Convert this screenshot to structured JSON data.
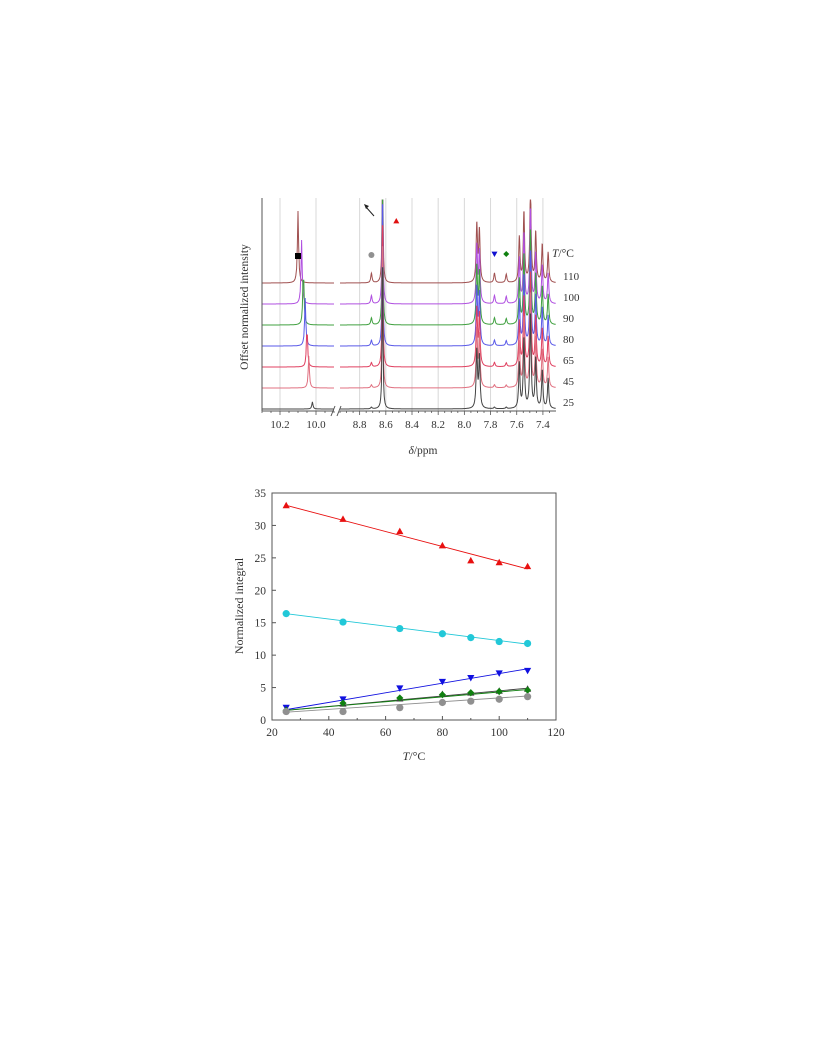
{
  "chart_data": [
    {
      "type": "line",
      "subtype": "nmr-spectra-stack",
      "xlabel_symbol": "δ",
      "xlabel_unit": "/ppm",
      "ylabel": "Offset normalized intensity",
      "x_axis_reversed": true,
      "x_axis_break": [
        8.95,
        10.05
      ],
      "xlim": [
        7.3,
        10.3
      ],
      "x_ticks": [
        "10.2",
        "10.0",
        "8.8",
        "8.6",
        "8.4",
        "8.2",
        "8.0",
        "7.8",
        "7.6",
        "7.4"
      ],
      "x_tick_values": [
        10.2,
        10.0,
        8.8,
        8.6,
        8.4,
        8.2,
        8.0,
        7.8,
        7.6,
        7.4
      ],
      "grid": true,
      "temperature_header_symbol": "T",
      "temperature_header_unit": "/°C",
      "series": [
        {
          "temperature": "110",
          "color": "#a05050",
          "peak_10": 10.1
        },
        {
          "temperature": "100",
          "color": "#b050e0",
          "peak_10": 10.08
        },
        {
          "temperature": "90",
          "color": "#40a040",
          "peak_10": 10.07
        },
        {
          "temperature": "80",
          "color": "#5a5ae8",
          "peak_10": 10.06
        },
        {
          "temperature": "65",
          "color": "#e04060",
          "peak_10": 10.05
        },
        {
          "temperature": "45",
          "color": "#e07080",
          "peak_10": 10.04
        },
        {
          "temperature": "25",
          "color": "#444444",
          "peak_10": 10.02
        }
      ],
      "markers": [
        {
          "shape": "square",
          "color": "#000000",
          "ppm": 10.1
        },
        {
          "shape": "circle",
          "color": "#909090",
          "ppm": 8.71
        },
        {
          "shape": "triangle-up",
          "color": "#e01010",
          "ppm": 8.52
        },
        {
          "shape": "triangle-down",
          "color": "#1010d0",
          "ppm": 7.77
        },
        {
          "shape": "diamond",
          "color": "#108010",
          "ppm": 7.68
        }
      ]
    },
    {
      "type": "scatter",
      "xlabel_symbol": "T",
      "xlabel_unit": "/°C",
      "ylabel": "Normalized integral",
      "xlim": [
        20,
        120
      ],
      "ylim": [
        0,
        35
      ],
      "x_ticks": [
        "20",
        "40",
        "60",
        "80",
        "100",
        "120"
      ],
      "x_tick_values": [
        20,
        40,
        60,
        80,
        100,
        120
      ],
      "y_ticks": [
        "0",
        "5",
        "10",
        "15",
        "20",
        "25",
        "30",
        "35"
      ],
      "y_tick_values": [
        0,
        5,
        10,
        15,
        20,
        25,
        30,
        35
      ],
      "grid": false,
      "x": [
        25,
        45,
        65,
        80,
        90,
        100,
        110
      ],
      "series": [
        {
          "marker": "triangle-up",
          "color": "#e81010",
          "values": [
            33.1,
            31.0,
            29.1,
            26.9,
            24.6,
            24.3,
            23.7
          ],
          "fit": [
            33.1,
            23.3
          ]
        },
        {
          "marker": "circle",
          "color": "#22c8d8",
          "values": [
            16.4,
            15.1,
            14.1,
            13.3,
            12.7,
            12.1,
            11.8
          ],
          "fit": [
            16.4,
            11.7
          ]
        },
        {
          "marker": "triangle-down",
          "color": "#1010e0",
          "values": [
            1.9,
            3.2,
            4.9,
            5.9,
            6.5,
            7.2,
            7.6
          ],
          "fit": [
            1.6,
            7.9
          ]
        },
        {
          "marker": "triangle-up",
          "color": "#404040",
          "values": [
            1.6,
            2.5,
            3.3,
            4.0,
            4.2,
            4.5,
            4.8
          ],
          "fit": [
            1.5,
            4.9
          ]
        },
        {
          "marker": "diamond",
          "color": "#108010",
          "values": [
            1.5,
            2.6,
            3.4,
            3.9,
            4.2,
            4.4,
            4.6
          ],
          "fit": [
            1.5,
            4.7
          ]
        },
        {
          "marker": "circle",
          "color": "#909090",
          "values": [
            1.3,
            1.3,
            1.9,
            2.7,
            2.9,
            3.2,
            3.6
          ],
          "fit": [
            1.2,
            3.7
          ]
        }
      ]
    }
  ]
}
